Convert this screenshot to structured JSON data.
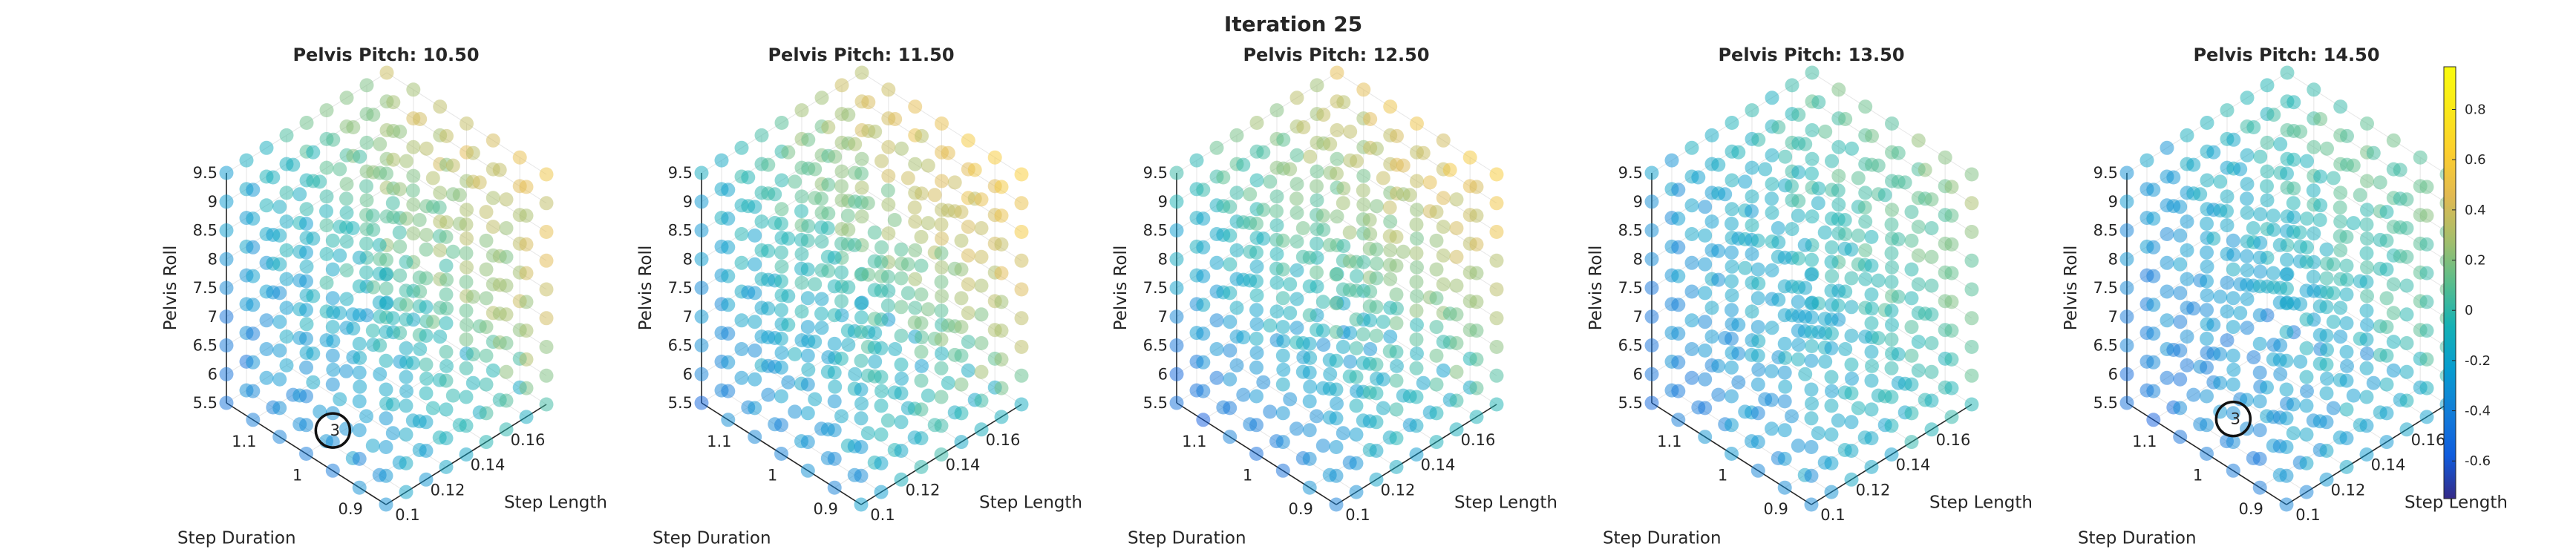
{
  "figure": {
    "title": "Iteration 25"
  },
  "chart_data": {
    "type": "scatter",
    "projection": "3d",
    "colormap": "parula",
    "colorbar": {
      "limits": [
        -0.75,
        0.97
      ],
      "ticks": [
        -0.6,
        -0.4,
        -0.2,
        0,
        0.2,
        0.4,
        0.6,
        0.8
      ],
      "tick_labels": [
        "-0.6",
        "-0.4",
        "-0.2",
        "0",
        "0.2",
        "0.4",
        "0.6",
        "0.8"
      ]
    },
    "axes": {
      "x": {
        "label": "Step Length",
        "range": [
          0.09,
          0.17
        ],
        "ticks": [
          "0.1",
          "0.12",
          "0.14",
          "0.16"
        ],
        "tick_values": [
          0.1,
          0.12,
          0.14,
          0.16
        ]
      },
      "y": {
        "label": "Step Duration",
        "range": [
          0.85,
          1.15
        ],
        "ticks": [
          "0.9",
          "1",
          "1.1"
        ],
        "tick_values": [
          0.9,
          1.0,
          1.1
        ]
      },
      "z": {
        "label": "Pelvis Roll",
        "range": [
          5.5,
          9.5
        ],
        "ticks": [
          "5.5",
          "6",
          "6.5",
          "7",
          "7.5",
          "8",
          "8.5",
          "9",
          "9.5"
        ],
        "tick_values": [
          5.5,
          6,
          6.5,
          7,
          7.5,
          8,
          8.5,
          9,
          9.5
        ]
      }
    },
    "grid": true,
    "panels": [
      {
        "title": "Pelvis Pitch: 10.50",
        "pelvis_pitch": 10.5,
        "highlight": {
          "label": "3",
          "step_length": 0.09,
          "step_duration": 0.95,
          "pelvis_roll": 6.2
        }
      },
      {
        "title": "Pelvis Pitch: 11.50",
        "pelvis_pitch": 11.5,
        "highlight": null
      },
      {
        "title": "Pelvis Pitch: 12.50",
        "pelvis_pitch": 12.5,
        "highlight": null
      },
      {
        "title": "Pelvis Pitch: 13.50",
        "pelvis_pitch": 13.5,
        "highlight": null
      },
      {
        "title": "Pelvis Pitch: 14.50",
        "pelvis_pitch": 14.5,
        "highlight": {
          "label": "3",
          "step_length": 0.09,
          "step_duration": 0.95,
          "pelvis_roll": 6.4
        }
      }
    ]
  }
}
